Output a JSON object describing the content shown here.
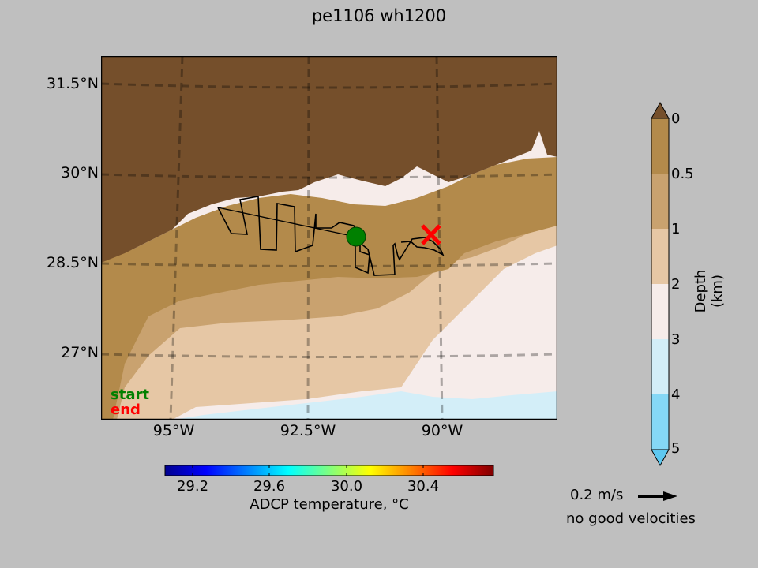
{
  "title": "pe1106 wh1200",
  "map": {
    "lat_labels": [
      "31.5°N",
      "30°N",
      "28.5°N",
      "27°N"
    ],
    "lon_labels": [
      "95°W",
      "92.5°W",
      "90°W"
    ],
    "start_label": "start",
    "end_label": "end",
    "start_color": "#008000",
    "end_color": "#ff0000",
    "land_color": "#754f2b"
  },
  "depth_colorbar": {
    "title": "Depth (km)",
    "ticks": [
      "0",
      "0.5",
      "1",
      "2",
      "3",
      "4",
      "5"
    ],
    "colors": [
      "#754f2b",
      "#b38a4b",
      "#c9a26f",
      "#e6c7a5",
      "#f6ecea",
      "#d3eef8",
      "#85d8f6",
      "#5ec8f0"
    ]
  },
  "temp_colorbar": {
    "title": "ADCP temperature, °C",
    "ticks": [
      "29.2",
      "29.6",
      "30.0",
      "30.4"
    ],
    "colormap": "jet"
  },
  "velocity": {
    "scale_label": "0.2 m/s",
    "status": "no good velocities"
  }
}
